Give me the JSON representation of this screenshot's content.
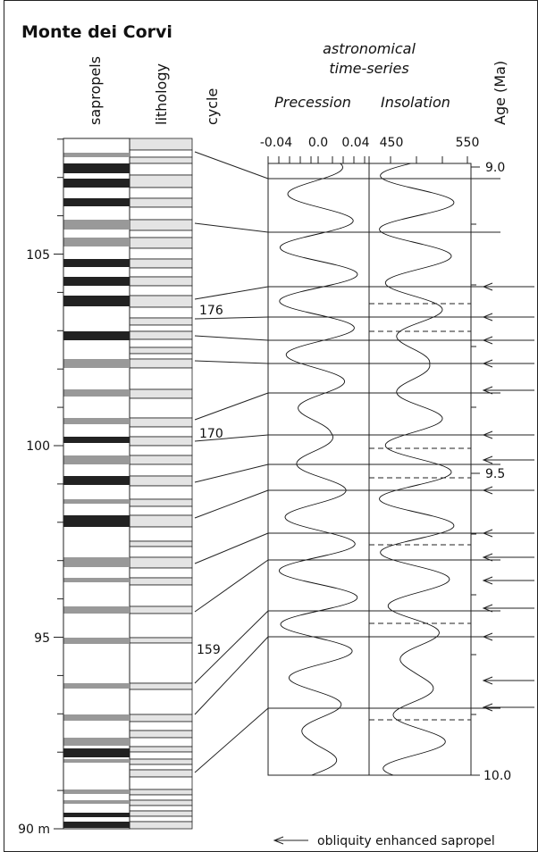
{
  "title": "Monte dei Corvi",
  "columns": [
    "sapropels",
    "lithology",
    "cycle"
  ],
  "depth_labels": [
    "105",
    "100",
    "95",
    "90 m"
  ],
  "cycles": [
    "176",
    "170",
    "159"
  ],
  "series_header": [
    "astronomical",
    "time-series"
  ],
  "panels": [
    {
      "title": "Precession",
      "ticks": [
        "-0.04",
        "0.0",
        "0.04"
      ]
    },
    {
      "title": "Insolation",
      "ticks": [
        "450",
        "550"
      ]
    }
  ],
  "age_axis": {
    "title": "Age (Ma)",
    "ticks": [
      "9.0",
      "9.5",
      "10.0"
    ]
  },
  "legend": "obliquity enhanced sapropel"
}
